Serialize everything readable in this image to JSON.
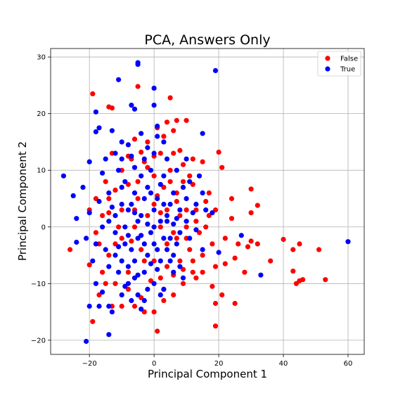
{
  "chart_data": {
    "type": "scatter",
    "title": "PCA, Answers Only",
    "xlabel": "Principal Component 1",
    "ylabel": "Principal Component 2",
    "xlim": [
      -32,
      65
    ],
    "ylim": [
      -22.5,
      31.5
    ],
    "xticks": [
      -20,
      0,
      20,
      40,
      60
    ],
    "yticks": [
      -20,
      -10,
      0,
      10,
      20,
      30
    ],
    "grid": true,
    "legend_position": "top-right",
    "series": [
      {
        "name": "False",
        "color": "#ff0000",
        "points": [
          [
            -19,
            23.5
          ],
          [
            -14,
            21.2
          ],
          [
            -13,
            21
          ],
          [
            -5,
            24.8
          ],
          [
            5,
            22.8
          ],
          [
            4,
            18.5
          ],
          [
            7,
            18.8
          ],
          [
            10,
            18.8
          ],
          [
            6,
            17
          ],
          [
            1,
            17.5
          ],
          [
            3,
            16
          ],
          [
            -2,
            15
          ],
          [
            -6,
            15.5
          ],
          [
            -4,
            13.2
          ],
          [
            -8,
            12.5
          ],
          [
            2,
            13
          ],
          [
            6,
            13
          ],
          [
            8,
            13.5
          ],
          [
            12,
            12
          ],
          [
            15,
            11.5
          ],
          [
            20,
            13.2
          ],
          [
            21,
            10.5
          ],
          [
            11,
            9
          ],
          [
            9,
            8
          ],
          [
            -15,
            8
          ],
          [
            -18,
            5
          ],
          [
            -12,
            6.5
          ],
          [
            -8,
            7.5
          ],
          [
            -5,
            8
          ],
          [
            0,
            9
          ],
          [
            3,
            7
          ],
          [
            7,
            6
          ],
          [
            12,
            7.5
          ],
          [
            16,
            4.5
          ],
          [
            17,
            6
          ],
          [
            24,
            5
          ],
          [
            30,
            6.7
          ],
          [
            32,
            3.8
          ],
          [
            19,
            3
          ],
          [
            13,
            3
          ],
          [
            8,
            2
          ],
          [
            4,
            3
          ],
          [
            0,
            4
          ],
          [
            -5,
            5
          ],
          [
            -10,
            3
          ],
          [
            -14,
            2.5
          ],
          [
            -16,
            2
          ],
          [
            -20,
            3
          ],
          [
            -26,
            -4
          ],
          [
            -20,
            -6.7
          ],
          [
            -14,
            -5
          ],
          [
            -10,
            -2
          ],
          [
            -6,
            0
          ],
          [
            -2,
            2
          ],
          [
            2,
            0
          ],
          [
            6,
            -1
          ],
          [
            10,
            -2
          ],
          [
            14,
            -1
          ],
          [
            18,
            -3
          ],
          [
            22,
            -2
          ],
          [
            26,
            -3
          ],
          [
            29,
            -3.5
          ],
          [
            30,
            -2.5
          ],
          [
            32,
            -3
          ],
          [
            36,
            -6
          ],
          [
            40,
            -2.2
          ],
          [
            43,
            -4
          ],
          [
            45,
            -3
          ],
          [
            51,
            -4
          ],
          [
            43,
            -7.8
          ],
          [
            44,
            -10
          ],
          [
            45,
            -9.5
          ],
          [
            46,
            -9.3
          ],
          [
            53,
            -9.3
          ],
          [
            25,
            -5.5
          ],
          [
            28,
            -8
          ],
          [
            24,
            1.5
          ],
          [
            30,
            2.5
          ],
          [
            15,
            -8
          ],
          [
            18,
            -10.5
          ],
          [
            21,
            -12
          ],
          [
            19,
            -13.5
          ],
          [
            25,
            -13.5
          ],
          [
            19,
            -17.5
          ],
          [
            12,
            -8
          ],
          [
            9,
            -10
          ],
          [
            6,
            -12
          ],
          [
            3,
            -13
          ],
          [
            0,
            -15
          ],
          [
            -3,
            -15
          ],
          [
            -6,
            -14
          ],
          [
            -10,
            -14
          ],
          [
            -13,
            -14
          ],
          [
            -15,
            -10
          ],
          [
            -19,
            -16.7
          ],
          [
            -17,
            -12
          ],
          [
            1,
            -18.4
          ],
          [
            -1,
            -9.5
          ],
          [
            4,
            -7
          ],
          [
            8,
            -6
          ],
          [
            -3,
            -6
          ],
          [
            -8,
            -8
          ],
          [
            -12,
            -10
          ],
          [
            -16,
            -8
          ],
          [
            -2,
            10.5
          ],
          [
            5,
            10
          ],
          [
            -10,
            10
          ],
          [
            -13,
            13
          ],
          [
            7,
            -2
          ],
          [
            11,
            -4
          ],
          [
            15,
            -5
          ],
          [
            19,
            -7
          ],
          [
            22,
            -6.5
          ],
          [
            -12,
            -3
          ],
          [
            -18,
            -1
          ],
          [
            -4,
            -4
          ],
          [
            0,
            -6
          ],
          [
            4,
            -3
          ],
          [
            10,
            3
          ],
          [
            13,
            1
          ],
          [
            16,
            0
          ],
          [
            2,
            -9
          ],
          [
            6,
            -8.5
          ],
          [
            9,
            -7.5
          ],
          [
            -8,
            -11
          ],
          [
            -4,
            -12.5
          ],
          [
            3,
            -11
          ],
          [
            -11,
            0
          ],
          [
            -7,
            -2.5
          ],
          [
            1,
            5.5
          ],
          [
            5,
            8
          ],
          [
            9,
            11
          ],
          [
            -3,
            11.5
          ],
          [
            -7,
            12
          ],
          [
            0,
            12.5
          ],
          [
            10,
            0
          ],
          [
            12,
            -6
          ],
          [
            17,
            2
          ],
          [
            -14,
            5
          ],
          [
            -17,
            -3
          ],
          [
            2,
            2.5
          ],
          [
            7,
            4.5
          ],
          [
            -6,
            3
          ],
          [
            13,
            -9
          ]
        ]
      },
      {
        "name": "True",
        "color": "#0000ff",
        "points": [
          [
            -18,
            20.3
          ],
          [
            -11,
            26
          ],
          [
            -5,
            29
          ],
          [
            -5,
            28.7
          ],
          [
            -7,
            21.5
          ],
          [
            -6,
            20.8
          ],
          [
            0,
            24.5
          ],
          [
            0,
            21.5
          ],
          [
            19,
            27.6
          ],
          [
            -17,
            17.5
          ],
          [
            -18,
            16.8
          ],
          [
            -13,
            17
          ],
          [
            -10,
            15
          ],
          [
            -8,
            14.5
          ],
          [
            -4,
            16.5
          ],
          [
            1,
            17.8
          ],
          [
            3,
            15
          ],
          [
            15,
            16.5
          ],
          [
            -12,
            13
          ],
          [
            -10,
            12
          ],
          [
            -6,
            10.5
          ],
          [
            -3,
            12
          ],
          [
            0,
            13
          ],
          [
            4,
            12
          ],
          [
            10,
            12
          ],
          [
            14,
            9
          ],
          [
            -16,
            9.5
          ],
          [
            -20,
            11.5
          ],
          [
            -28,
            9
          ],
          [
            -25,
            5.5
          ],
          [
            -22,
            7
          ],
          [
            -20,
            2.5
          ],
          [
            -24,
            1.5
          ],
          [
            -17,
            4.5
          ],
          [
            -14,
            6
          ],
          [
            -10,
            7
          ],
          [
            -6,
            6
          ],
          [
            -2,
            7
          ],
          [
            2,
            7.5
          ],
          [
            6,
            6
          ],
          [
            10,
            5
          ],
          [
            15,
            6
          ],
          [
            18,
            2.5
          ],
          [
            -8,
            3
          ],
          [
            -4,
            2
          ],
          [
            0,
            3
          ],
          [
            4,
            2
          ],
          [
            8,
            3
          ],
          [
            12,
            2.5
          ],
          [
            -24,
            -2.7
          ],
          [
            -21,
            -2
          ],
          [
            -18,
            -3
          ],
          [
            -15,
            -4
          ],
          [
            -12,
            -5
          ],
          [
            -9,
            -3
          ],
          [
            -5,
            -2
          ],
          [
            -1,
            -1
          ],
          [
            3,
            -2
          ],
          [
            7,
            -3
          ],
          [
            11,
            -2
          ],
          [
            15,
            -4
          ],
          [
            20,
            -4.5
          ],
          [
            27,
            -1.5
          ],
          [
            33,
            -8.5
          ],
          [
            60,
            -2.6
          ],
          [
            -18,
            -10
          ],
          [
            -16,
            -11.5
          ],
          [
            -14,
            -14
          ],
          [
            -13,
            -15
          ],
          [
            -17,
            -14
          ],
          [
            -20,
            -14
          ],
          [
            -21,
            -20.2
          ],
          [
            -14,
            -19
          ],
          [
            -10,
            -12
          ],
          [
            -8,
            -10
          ],
          [
            -5,
            -12
          ],
          [
            -4,
            -14.5
          ],
          [
            0,
            -10
          ],
          [
            3,
            -11
          ],
          [
            6,
            -8
          ],
          [
            9,
            -9
          ],
          [
            -6,
            -6
          ],
          [
            -2,
            -5
          ],
          [
            2,
            -6
          ],
          [
            6,
            -5
          ],
          [
            -11,
            -8
          ],
          [
            -8,
            -7
          ],
          [
            -3,
            -8
          ],
          [
            1,
            -7.5
          ],
          [
            5,
            -6
          ],
          [
            -9,
            0
          ],
          [
            -5,
            1
          ],
          [
            0,
            0
          ],
          [
            4,
            1
          ],
          [
            8,
            -1
          ],
          [
            -14,
            1
          ],
          [
            -12,
            -1
          ],
          [
            -7,
            4
          ],
          [
            -3,
            5
          ],
          [
            1,
            5
          ],
          [
            5,
            4
          ],
          [
            9,
            7
          ],
          [
            -15,
            12
          ],
          [
            -9,
            8
          ],
          [
            -4,
            9
          ],
          [
            3,
            9
          ],
          [
            7,
            10
          ],
          [
            -7,
            -4
          ],
          [
            -3,
            -3
          ],
          [
            1,
            -4
          ],
          [
            5,
            -2
          ],
          [
            -10,
            -6
          ],
          [
            -6,
            -9
          ],
          [
            -2,
            -11
          ],
          [
            2,
            -12
          ],
          [
            -12,
            2
          ],
          [
            -10,
            4
          ],
          [
            -2,
            0.5
          ],
          [
            2,
            1
          ],
          [
            6,
            0.5
          ],
          [
            10,
            1
          ],
          [
            13,
            -0.5
          ],
          [
            -16,
            0
          ],
          [
            -19,
            -6
          ],
          [
            -6,
            2.5
          ],
          [
            -1,
            6
          ],
          [
            3,
            4
          ],
          [
            7,
            1.5
          ],
          [
            -4,
            -1.5
          ],
          [
            0,
            -3
          ],
          [
            4,
            -4
          ],
          [
            -8,
            -1.5
          ],
          [
            -11,
            -3.5
          ],
          [
            -14,
            -7
          ],
          [
            -9,
            -10.5
          ],
          [
            -5,
            -8.5
          ],
          [
            -1,
            -6.5
          ],
          [
            -7,
            12.5
          ],
          [
            -2,
            14
          ],
          [
            1,
            16
          ],
          [
            -11,
            10
          ],
          [
            -13,
            3.5
          ],
          [
            11,
            8
          ],
          [
            13,
            4
          ],
          [
            16,
            3
          ],
          [
            8,
            -7
          ],
          [
            -3,
            -13
          ],
          [
            -7,
            -13
          ],
          [
            -1,
            10
          ]
        ]
      }
    ]
  }
}
